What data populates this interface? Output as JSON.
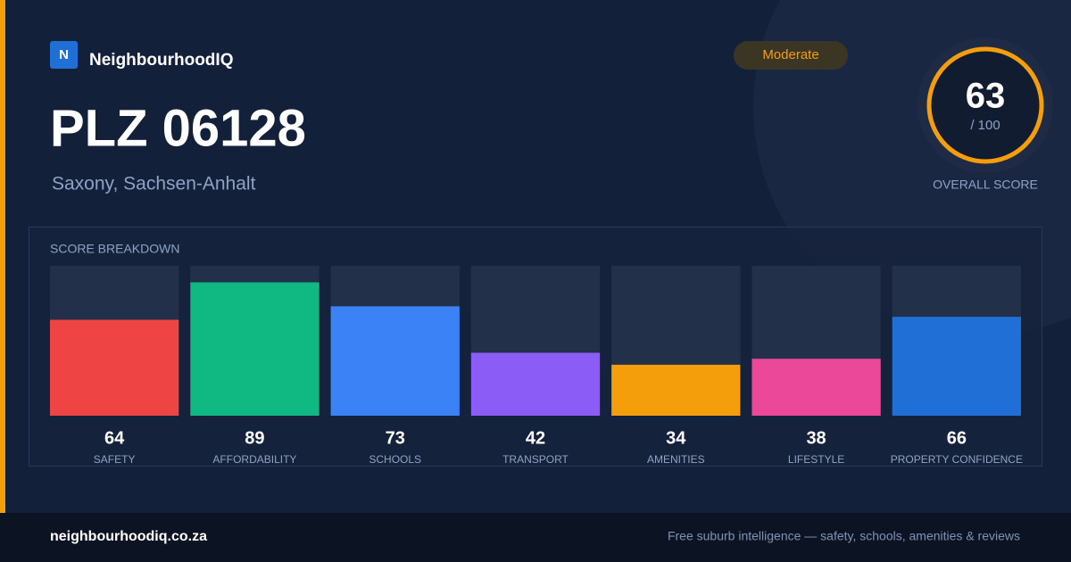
{
  "brand": {
    "logo": "N",
    "name": "NeighbourhoodIQ"
  },
  "title": "PLZ 06128",
  "subtitle": "Saxony, Sachsen-Anhalt",
  "badge": "Moderate",
  "overall": {
    "score": 63,
    "max_label": "/ 100",
    "label": "OVERALL SCORE"
  },
  "chart_data": {
    "type": "bar",
    "title": "SCORE BREAKDOWN",
    "categories": [
      "SAFETY",
      "AFFORDABILITY",
      "SCHOOLS",
      "TRANSPORT",
      "AMENITIES",
      "LIFESTYLE",
      "PROPERTY CONFIDENCE"
    ],
    "values": [
      64,
      89,
      73,
      42,
      34,
      38,
      66
    ],
    "colors": [
      "#ef4444",
      "#10b981",
      "#3b82f6",
      "#8b5cf6",
      "#f59e0b",
      "#ec4899",
      "#1f6fd6"
    ],
    "ylim": [
      0,
      100
    ]
  },
  "footer": {
    "site": "neighbourhoodiq.co.za",
    "tagline": "Free suburb intelligence — safety, schools, amenities & reviews"
  }
}
